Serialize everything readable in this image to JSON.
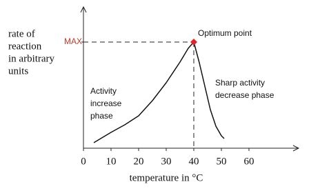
{
  "chart_data": {
    "type": "line",
    "ylabel": [
      "rate of",
      "reaction",
      "in arbitrary",
      "units"
    ],
    "xlabel": "temperature in °C",
    "x": [
      3.75,
      10,
      15,
      20,
      25,
      30,
      35,
      38,
      40,
      42,
      44,
      46,
      48,
      50,
      51
    ],
    "values": [
      4,
      11.5,
      17,
      23.5,
      34.5,
      47.5,
      62.5,
      72.5,
      77,
      62,
      45,
      28,
      16,
      9,
      7
    ],
    "color": "#111111",
    "xlim": [
      0,
      78
    ],
    "xticks": [
      0,
      10,
      20,
      30,
      40,
      50,
      60
    ],
    "ylim": [
      0,
      100
    ],
    "yticks": [
      {
        "value": 77,
        "label": "MAX"
      }
    ],
    "peak": {
      "x": 40,
      "y": 77,
      "label": "Optimum point",
      "color": "#e0262b"
    },
    "annotations": [
      {
        "x": 2.5,
        "y": 41,
        "lines": [
          "Activity",
          "increase",
          "phase"
        ]
      },
      {
        "x": 47.75,
        "y": 47,
        "lines": [
          "Sharp activity",
          "decrease phase"
        ]
      }
    ]
  }
}
